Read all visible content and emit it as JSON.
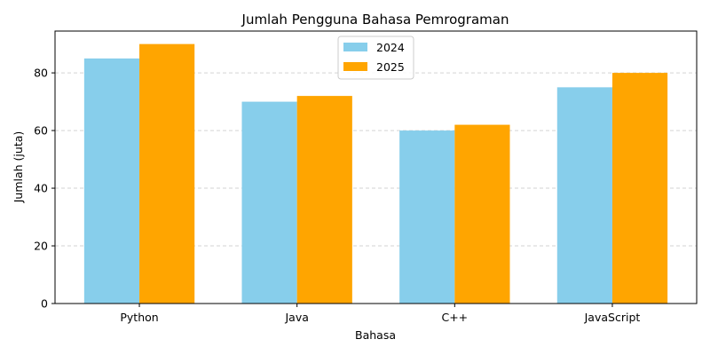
{
  "chart_data": {
    "type": "bar",
    "title": "Jumlah Pengguna Bahasa Pemrograman",
    "xlabel": "Bahasa",
    "ylabel": "Jumlah (juta)",
    "categories": [
      "Python",
      "Java",
      "C++",
      "JavaScript"
    ],
    "series": [
      {
        "name": "2024",
        "values": [
          85,
          70,
          60,
          75
        ],
        "color": "#87ceeb"
      },
      {
        "name": "2025",
        "values": [
          90,
          72,
          62,
          80
        ],
        "color": "#ffa500"
      }
    ],
    "ylim": [
      0,
      94.5
    ],
    "yticks": [
      0,
      20,
      40,
      60,
      80
    ],
    "grid": "y-dashed",
    "legend_position": "top-center"
  }
}
